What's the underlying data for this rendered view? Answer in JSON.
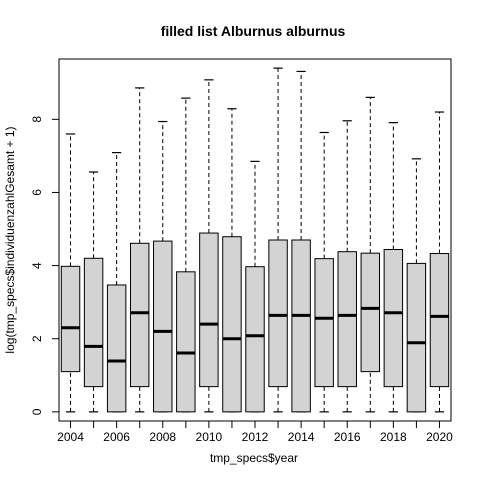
{
  "chart_data": {
    "type": "boxplot",
    "title": "filled list Alburnus alburnus",
    "xlabel": "tmp_specs$year",
    "ylabel": "log(tmp_specs$individuenzahlGesamt + 1)",
    "x_tick_labels": [
      "2004",
      "2006",
      "2008",
      "2010",
      "2012",
      "2014",
      "2016",
      "2018",
      "2020"
    ],
    "y_tick_labels": [
      "0",
      "2",
      "4",
      "6",
      "8"
    ],
    "y_ticks": [
      0,
      2,
      4,
      6,
      8
    ],
    "ylim": [
      -0.25,
      9.65
    ],
    "grid": false,
    "box_fill": "#d3d3d3",
    "boxes": [
      {
        "year": 2004,
        "min": 0,
        "q1": 1.1,
        "median": 2.3,
        "q3": 3.98,
        "max": 7.6
      },
      {
        "year": 2005,
        "min": 0,
        "q1": 0.69,
        "median": 1.79,
        "q3": 4.2,
        "max": 6.56
      },
      {
        "year": 2006,
        "min": 0,
        "q1": 0,
        "median": 1.39,
        "q3": 3.47,
        "max": 7.09
      },
      {
        "year": 2007,
        "min": 0,
        "q1": 0.69,
        "median": 2.71,
        "q3": 4.61,
        "max": 8.86
      },
      {
        "year": 2008,
        "min": 0,
        "q1": 0,
        "median": 2.2,
        "q3": 4.67,
        "max": 7.94
      },
      {
        "year": 2009,
        "min": 0,
        "q1": 0,
        "median": 1.61,
        "q3": 3.83,
        "max": 8.58
      },
      {
        "year": 2010,
        "min": 0,
        "q1": 0.69,
        "median": 2.4,
        "q3": 4.89,
        "max": 9.08
      },
      {
        "year": 2011,
        "min": 0,
        "q1": 0,
        "median": 2.0,
        "q3": 4.79,
        "max": 8.29
      },
      {
        "year": 2012,
        "min": 0,
        "q1": 0,
        "median": 2.08,
        "q3": 3.97,
        "max": 6.85
      },
      {
        "year": 2013,
        "min": 0,
        "q1": 0.69,
        "median": 2.64,
        "q3": 4.7,
        "max": 9.4
      },
      {
        "year": 2014,
        "min": 0,
        "q1": 0,
        "median": 2.64,
        "q3": 4.7,
        "max": 9.31
      },
      {
        "year": 2015,
        "min": 0,
        "q1": 0.69,
        "median": 2.56,
        "q3": 4.19,
        "max": 7.64
      },
      {
        "year": 2016,
        "min": 0,
        "q1": 0.69,
        "median": 2.64,
        "q3": 4.38,
        "max": 7.96
      },
      {
        "year": 2017,
        "min": 0,
        "q1": 1.1,
        "median": 2.83,
        "q3": 4.34,
        "max": 8.6
      },
      {
        "year": 2018,
        "min": 0,
        "q1": 0.69,
        "median": 2.71,
        "q3": 4.44,
        "max": 7.91
      },
      {
        "year": 2019,
        "min": 0,
        "q1": 0,
        "median": 1.89,
        "q3": 4.06,
        "max": 6.92
      },
      {
        "year": 2020,
        "min": 0,
        "q1": 0.69,
        "median": 2.61,
        "q3": 4.33,
        "max": 8.2
      }
    ]
  }
}
